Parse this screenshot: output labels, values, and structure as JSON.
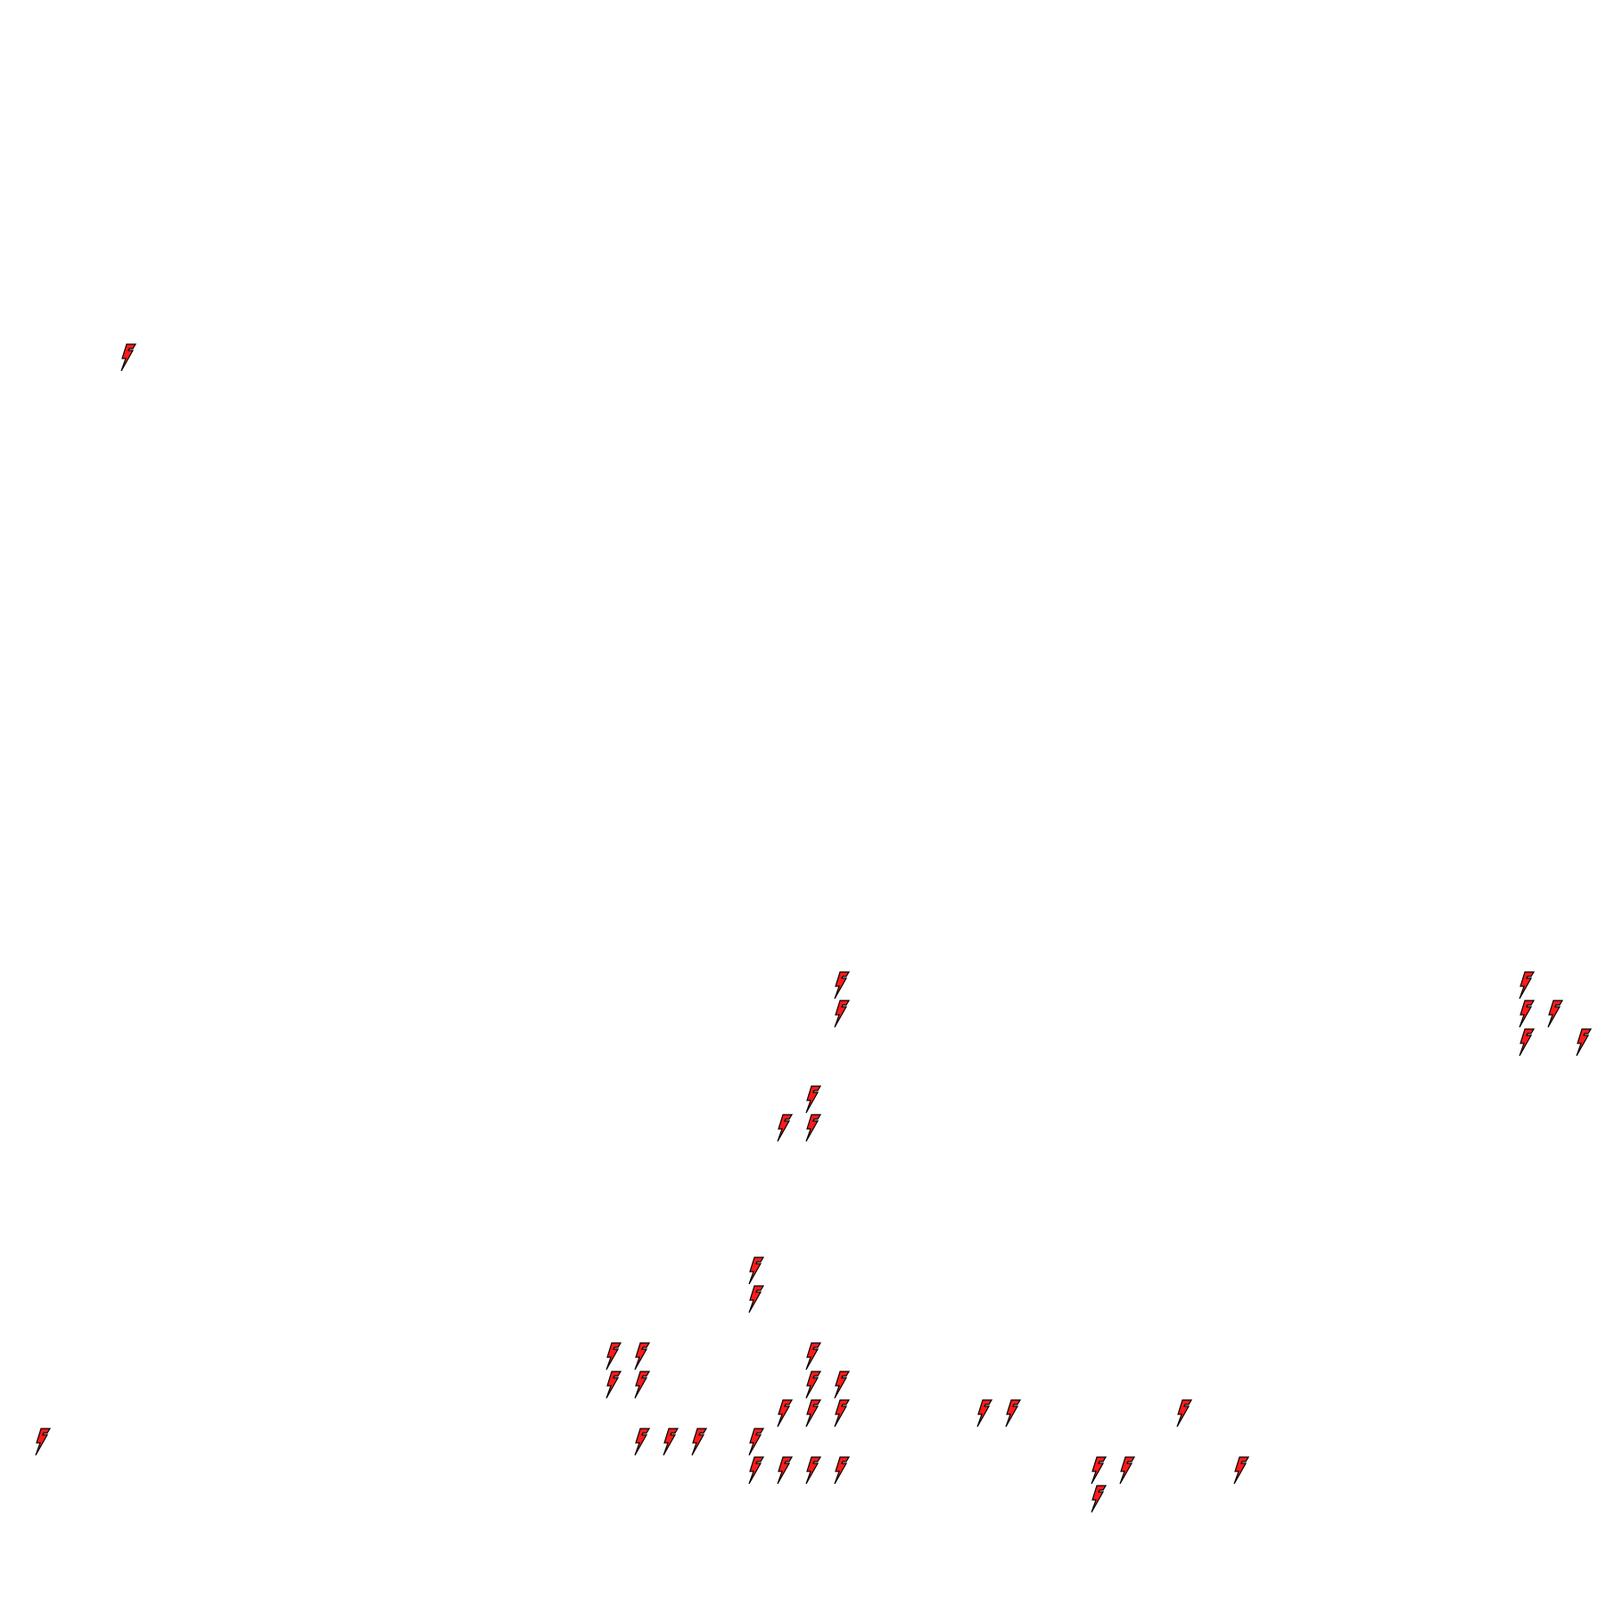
{
  "canvas": {
    "background": "#ffffff"
  },
  "marker": {
    "icon": "lightning-bolt-icon",
    "fill": "#ff1a1a",
    "stroke": "#000000"
  }
}
